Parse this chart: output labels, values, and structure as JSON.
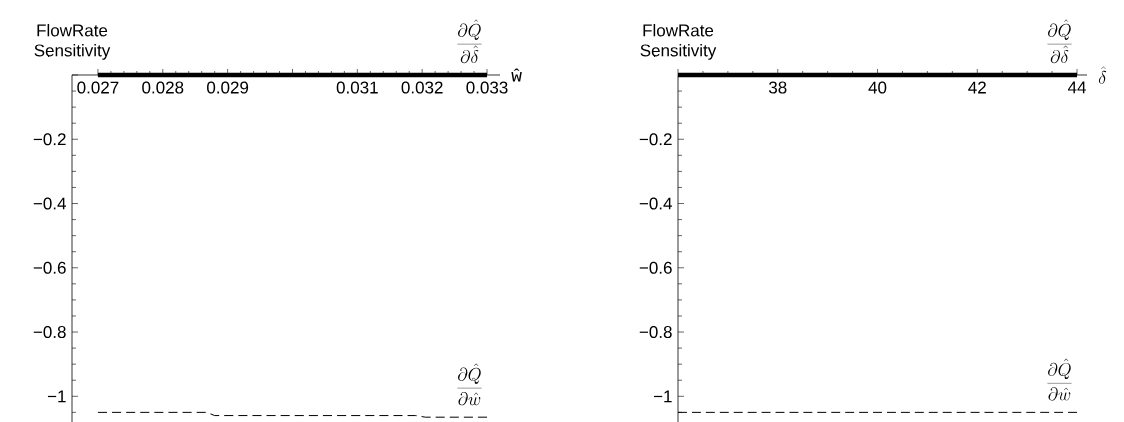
{
  "chart_data": [
    {
      "type": "line",
      "ylabel": "FlowRate Sensitivity",
      "xlabel": "ŵ",
      "xlim": [
        0.0266,
        0.0332
      ],
      "ylim": [
        -1.08,
        0
      ],
      "xticks": [
        0.027,
        {
          "value": 0.0272,
          "label": null
        },
        {
          "value": 0.0274,
          "label": null
        },
        {
          "value": 0.0276,
          "label": null
        },
        {
          "value": 0.0278,
          "label": null
        },
        0.028,
        {
          "value": 0.0282,
          "label": null
        },
        {
          "value": 0.0284,
          "label": null
        },
        {
          "value": 0.0286,
          "label": null
        },
        {
          "value": 0.0288,
          "label": null
        },
        0.029,
        {
          "value": 0.0292,
          "label": null
        },
        {
          "value": 0.0294,
          "label": null
        },
        {
          "value": 0.0296,
          "label": null
        },
        {
          "value": 0.0298,
          "label": null
        },
        {
          "value": 0.03,
          "label": null
        },
        {
          "value": 0.0302,
          "label": null
        },
        {
          "value": 0.0304,
          "label": null
        },
        {
          "value": 0.0306,
          "label": null
        },
        {
          "value": 0.0308,
          "label": null
        },
        0.031,
        {
          "value": 0.0312,
          "label": null
        },
        {
          "value": 0.0314,
          "label": null
        },
        {
          "value": 0.0316,
          "label": null
        },
        {
          "value": 0.0318,
          "label": null
        },
        0.032,
        {
          "value": 0.0322,
          "label": null
        },
        {
          "value": 0.0324,
          "label": null
        },
        {
          "value": 0.0326,
          "label": null
        },
        {
          "value": 0.0328,
          "label": null
        },
        0.033
      ],
      "yticks": [
        {
          "value": -1.05,
          "label": null
        },
        {
          "value": -1,
          "label": "−1"
        },
        {
          "value": -0.95,
          "label": null
        },
        {
          "value": -0.9,
          "label": null
        },
        {
          "value": -0.85,
          "label": null
        },
        {
          "value": -0.8,
          "label": "−0.8"
        },
        {
          "value": -0.75,
          "label": null
        },
        {
          "value": -0.7,
          "label": null
        },
        {
          "value": -0.65,
          "label": null
        },
        {
          "value": -0.6,
          "label": "−0.6"
        },
        {
          "value": -0.55,
          "label": null
        },
        {
          "value": -0.5,
          "label": null
        },
        {
          "value": -0.45,
          "label": null
        },
        {
          "value": -0.4,
          "label": "−0.4"
        },
        {
          "value": -0.35,
          "label": null
        },
        {
          "value": -0.3,
          "label": null
        },
        {
          "value": -0.25,
          "label": null
        },
        {
          "value": -0.2,
          "label": "−0.2"
        },
        {
          "value": -0.15,
          "label": null
        },
        {
          "value": -0.1,
          "label": null
        },
        {
          "value": -0.05,
          "label": null
        },
        {
          "value": 0,
          "label": null
        }
      ],
      "series": [
        {
          "name": "\\frac{\\partial\\hat{Q}}{\\partial\\hat{\\delta}}",
          "color": "#000000",
          "line_style": "solid",
          "x": [
            0.027,
            0.033
          ],
          "values": [
            0,
            0
          ]
        },
        {
          "name": "\\frac{\\partial\\hat{Q}}{\\partial\\hat{w}}",
          "color": "#000000",
          "line_style": "dashed",
          "x": [
            0.027,
            0.02868,
            0.0288,
            0.0319,
            0.03205,
            0.033
          ],
          "values": [
            -1.05,
            -1.05,
            -1.06,
            -1.06,
            -1.065,
            -1.065
          ]
        }
      ]
    },
    {
      "type": "line",
      "ylabel": "FlowRate Sensitivity",
      "xlabel": "\\hat{\\delta}",
      "xlim": [
        36,
        44.2
      ],
      "ylim": [
        -1.08,
        0
      ],
      "xticks": [
        {
          "value": 36,
          "label": null
        },
        {
          "value": 36.5,
          "label": null
        },
        {
          "value": 37,
          "label": null
        },
        {
          "value": 37.5,
          "label": null
        },
        38,
        {
          "value": 38.5,
          "label": null
        },
        {
          "value": 39,
          "label": null
        },
        {
          "value": 39.5,
          "label": null
        },
        40,
        {
          "value": 40.5,
          "label": null
        },
        {
          "value": 41,
          "label": null
        },
        {
          "value": 41.5,
          "label": null
        },
        42,
        {
          "value": 42.5,
          "label": null
        },
        {
          "value": 43,
          "label": null
        },
        {
          "value": 43.5,
          "label": null
        },
        44
      ],
      "yticks": [
        {
          "value": -1.05,
          "label": null
        },
        {
          "value": -1,
          "label": "−1"
        },
        {
          "value": -0.95,
          "label": null
        },
        {
          "value": -0.9,
          "label": null
        },
        {
          "value": -0.85,
          "label": null
        },
        {
          "value": -0.8,
          "label": "−0.8"
        },
        {
          "value": -0.75,
          "label": null
        },
        {
          "value": -0.7,
          "label": null
        },
        {
          "value": -0.65,
          "label": null
        },
        {
          "value": -0.6,
          "label": "−0.6"
        },
        {
          "value": -0.55,
          "label": null
        },
        {
          "value": -0.5,
          "label": null
        },
        {
          "value": -0.45,
          "label": null
        },
        {
          "value": -0.4,
          "label": "−0.4"
        },
        {
          "value": -0.35,
          "label": null
        },
        {
          "value": -0.3,
          "label": null
        },
        {
          "value": -0.25,
          "label": null
        },
        {
          "value": -0.2,
          "label": "−0.2"
        },
        {
          "value": -0.15,
          "label": null
        },
        {
          "value": -0.1,
          "label": null
        },
        {
          "value": -0.05,
          "label": null
        },
        {
          "value": 0,
          "label": null
        }
      ],
      "series": [
        {
          "name": "\\frac{\\partial\\hat{Q}}{\\partial\\hat{\\delta}}",
          "color": "#000000",
          "line_style": "solid",
          "x": [
            36,
            44
          ],
          "values": [
            0,
            0
          ]
        },
        {
          "name": "\\frac{\\partial\\hat{Q}}{\\partial\\hat{w}}",
          "color": "#000000",
          "line_style": "dashed",
          "x": [
            36,
            44
          ],
          "values": [
            -1.05,
            -1.05
          ]
        }
      ]
    }
  ]
}
